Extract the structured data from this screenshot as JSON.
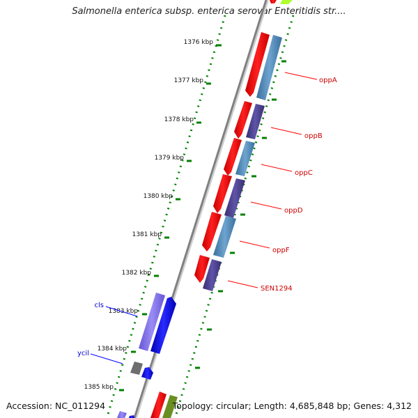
{
  "title": "Salmonella enterica subsp. enterica serovar Enteritidis str....",
  "footer": {
    "accession": "Accession: NC_011294",
    "summary": "Topology: circular; Length: 4,685,848 bp; Genes: 4,312"
  },
  "ticks": [
    "1376 kbp",
    "1377 kbp",
    "1378 kbp",
    "1379 kbp",
    "1380 kbp",
    "1381 kbp",
    "1382 kbp",
    "1383 kbp",
    "1384 kbp",
    "1385 kbp"
  ],
  "genes_right": [
    "oppA",
    "oppB",
    "oppC",
    "oppD",
    "oppF",
    "SEN1294"
  ],
  "genes_left": [
    "cls",
    "ycil"
  ],
  "colors": {
    "forward_cds": "#ff0000",
    "reverse_cds": "#0000ff",
    "cog_blue": "#4682b4",
    "cog_purple": "#483d8b",
    "cog_lavender": "#7b68ee",
    "gray_cds": "#808080",
    "olive_cds": "#6b8e23",
    "yellowgreen_cds": "#adff2f",
    "backbone": "#808080",
    "ruler": "#008000",
    "label_red": "#cc0000",
    "label_blue": "#0000cc"
  }
}
